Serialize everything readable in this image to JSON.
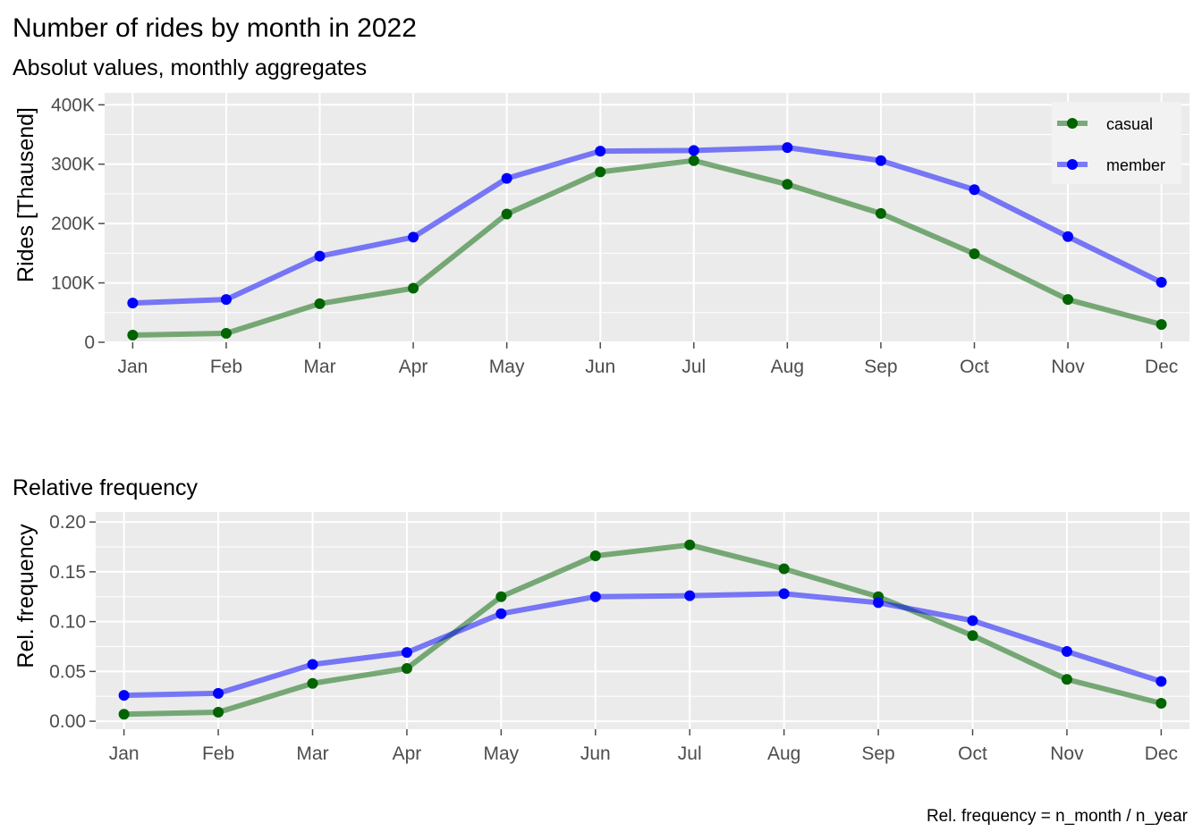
{
  "colors": {
    "casual": "#006400",
    "member": "#0000ff",
    "panel_bg": "#ebebeb",
    "grid": "#ffffff",
    "tick": "#4d4d4d"
  },
  "chart_data": [
    {
      "type": "line",
      "title": "Number of rides by month in 2022",
      "subtitle": "Absolut values, monthly aggregates",
      "xlabel": "",
      "ylabel": "Rides [Thausend]",
      "categories": [
        "Jan",
        "Feb",
        "Mar",
        "Apr",
        "May",
        "Jun",
        "Jul",
        "Aug",
        "Sep",
        "Oct",
        "Nov",
        "Dec"
      ],
      "ylim": [
        0,
        420000
      ],
      "yticks": [
        0,
        100000,
        200000,
        300000,
        400000
      ],
      "ytick_labels": [
        "0",
        "100K",
        "200K",
        "300K",
        "400K"
      ],
      "grid": true,
      "legend_position": "top-right",
      "series": [
        {
          "name": "casual",
          "color": "#006400",
          "values": [
            12000,
            15000,
            65000,
            91000,
            216000,
            287000,
            306000,
            266000,
            217000,
            149000,
            72000,
            30000
          ]
        },
        {
          "name": "member",
          "color": "#0000ff",
          "values": [
            66000,
            72000,
            145000,
            177000,
            276000,
            322000,
            323000,
            328000,
            306000,
            257000,
            178000,
            101000
          ]
        }
      ]
    },
    {
      "type": "line",
      "title": "Relative frequency",
      "xlabel": "",
      "ylabel": "Rel. frequency",
      "categories": [
        "Jan",
        "Feb",
        "Mar",
        "Apr",
        "May",
        "Jun",
        "Jul",
        "Aug",
        "Sep",
        "Oct",
        "Nov",
        "Dec"
      ],
      "ylim": [
        -0.008,
        0.21
      ],
      "yticks": [
        0,
        0.05,
        0.1,
        0.15,
        0.2
      ],
      "ytick_labels": [
        "0.00",
        "0.05",
        "0.10",
        "0.15",
        "0.20"
      ],
      "grid": true,
      "caption": "Rel. frequency = n_month / n_year",
      "series": [
        {
          "name": "casual",
          "color": "#006400",
          "values": [
            0.007,
            0.009,
            0.038,
            0.053,
            0.125,
            0.166,
            0.177,
            0.153,
            0.125,
            0.086,
            0.042,
            0.018
          ]
        },
        {
          "name": "member",
          "color": "#0000ff",
          "values": [
            0.026,
            0.028,
            0.057,
            0.069,
            0.108,
            0.125,
            0.126,
            0.128,
            0.119,
            0.101,
            0.07,
            0.04
          ]
        }
      ]
    }
  ]
}
